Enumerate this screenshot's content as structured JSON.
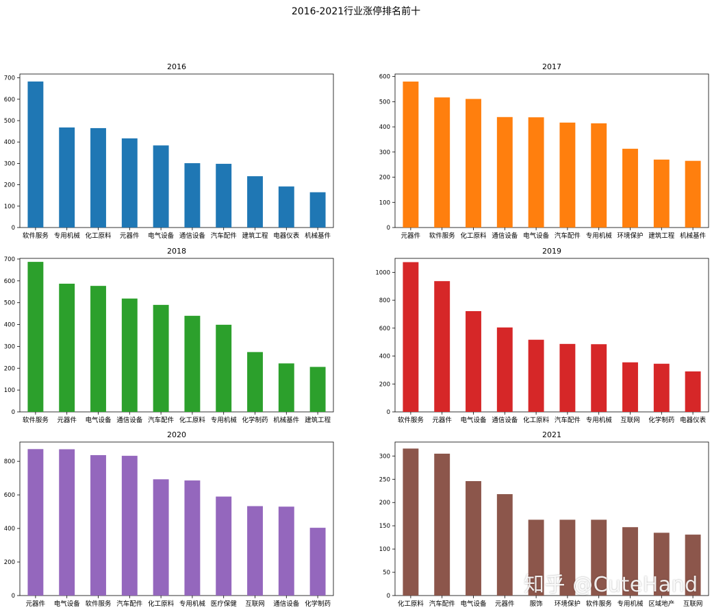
{
  "figure": {
    "suptitle": "2016-2021行业涨停排名前十",
    "watermark": "知乎 @CuteHand"
  },
  "chart_data": [
    {
      "type": "bar",
      "title": "2016",
      "color": "#1f77b4",
      "categories": [
        "软件服务",
        "专用机械",
        "化工原料",
        "元器件",
        "电气设备",
        "通信设备",
        "汽车配件",
        "建筑工程",
        "电器仪表",
        "机械基件"
      ],
      "values": [
        683,
        468,
        465,
        417,
        384,
        301,
        298,
        240,
        192,
        165
      ],
      "ylim": [
        0,
        718
      ],
      "yticks": [
        0,
        100,
        200,
        300,
        400,
        500,
        600,
        700
      ]
    },
    {
      "type": "bar",
      "title": "2017",
      "color": "#ff7f0e",
      "categories": [
        "元器件",
        "软件服务",
        "化工原料",
        "通信设备",
        "电气设备",
        "汽车配件",
        "专用机械",
        "环境保护",
        "建筑工程",
        "机械基件"
      ],
      "values": [
        580,
        517,
        511,
        439,
        438,
        417,
        414,
        313,
        270,
        265
      ],
      "ylim": [
        0,
        610
      ],
      "yticks": [
        0,
        100,
        200,
        300,
        400,
        500,
        600
      ]
    },
    {
      "type": "bar",
      "title": "2018",
      "color": "#2ca02c",
      "categories": [
        "软件服务",
        "元器件",
        "电气设备",
        "通信设备",
        "汽车配件",
        "化工原料",
        "专用机械",
        "化学制药",
        "机械基件",
        "建筑工程"
      ],
      "values": [
        687,
        587,
        577,
        519,
        490,
        440,
        399,
        274,
        222,
        206
      ],
      "ylim": [
        0,
        703
      ],
      "yticks": [
        0,
        100,
        200,
        300,
        400,
        500,
        600,
        700
      ]
    },
    {
      "type": "bar",
      "title": "2019",
      "color": "#d62728",
      "categories": [
        "软件服务",
        "元器件",
        "电气设备",
        "通信设备",
        "化工原料",
        "汽车配件",
        "专用机械",
        "互联网",
        "化学制药",
        "电器仪表"
      ],
      "values": [
        1073,
        937,
        722,
        605,
        517,
        487,
        485,
        355,
        345,
        290
      ],
      "ylim": [
        0,
        1100
      ],
      "yticks": [
        0,
        200,
        400,
        600,
        800,
        1000
      ]
    },
    {
      "type": "bar",
      "title": "2020",
      "color": "#9467bd",
      "categories": [
        "元器件",
        "电气设备",
        "软件服务",
        "汽车配件",
        "化工原料",
        "专用机械",
        "医疗保健",
        "互联网",
        "通信设备",
        "化学制药"
      ],
      "values": [
        873,
        872,
        837,
        833,
        693,
        686,
        590,
        533,
        530,
        404
      ],
      "ylim": [
        0,
        915
      ],
      "yticks": [
        0,
        200,
        400,
        600,
        800
      ]
    },
    {
      "type": "bar",
      "title": "2021",
      "color": "#8c564b",
      "categories": [
        "化工原料",
        "汽车配件",
        "电气设备",
        "元器件",
        "服饰",
        "环境保护",
        "软件服务",
        "专用机械",
        "区域地产",
        "互联网"
      ],
      "values": [
        316,
        305,
        246,
        218,
        163,
        163,
        163,
        147,
        135,
        131
      ],
      "ylim": [
        0,
        330
      ],
      "yticks": [
        0,
        50,
        100,
        150,
        200,
        250,
        300
      ]
    }
  ]
}
